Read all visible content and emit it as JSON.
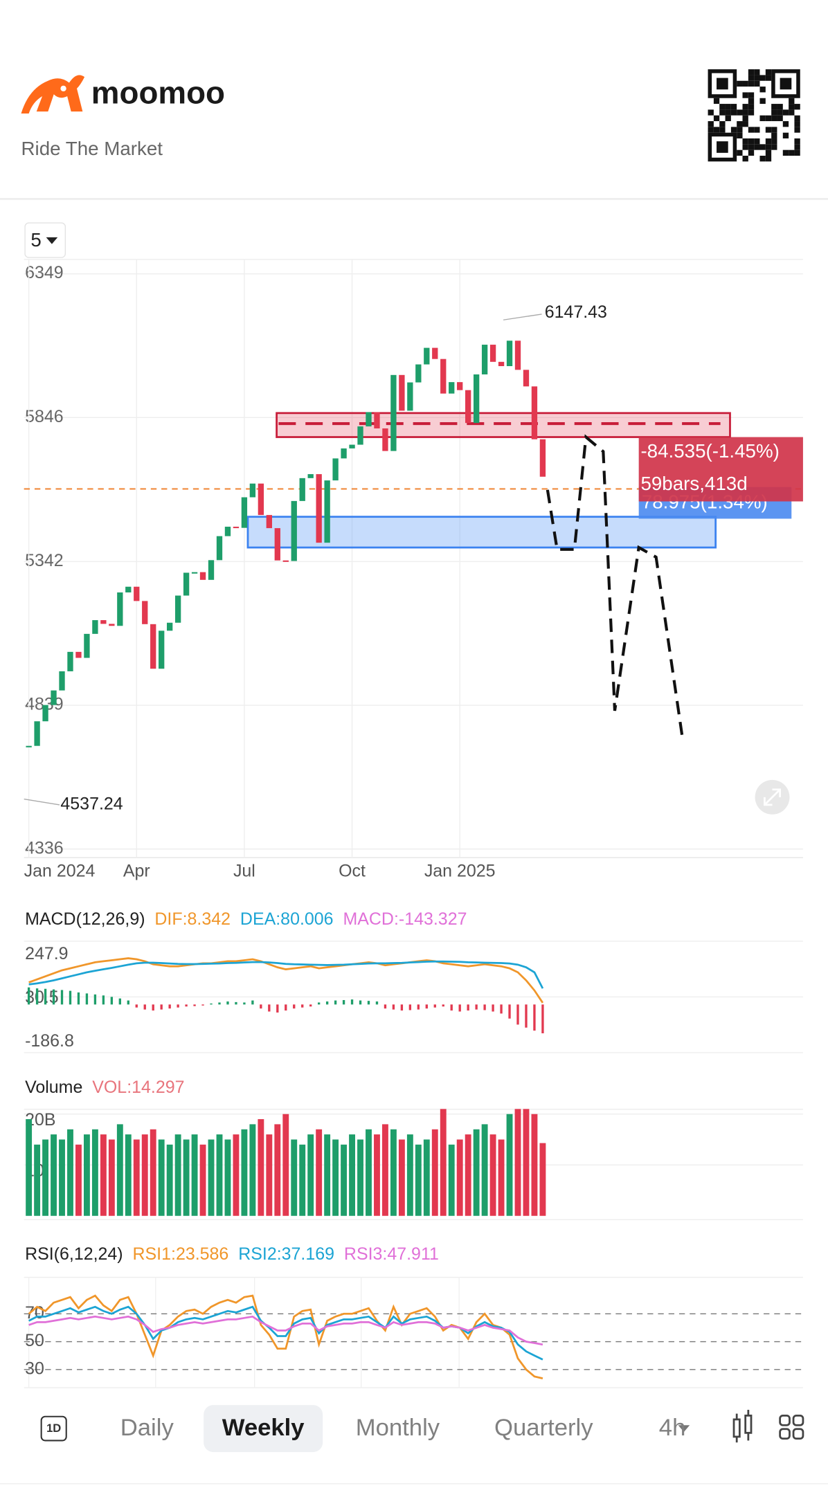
{
  "header": {
    "brand": "moomoo",
    "tagline": "Ride The Market"
  },
  "period_selector": "5",
  "chart_data": [
    {
      "type": "candlestick",
      "up_color": "#1e9e6a",
      "down_color": "#e2384f",
      "xlim": [
        0,
        62
      ],
      "xticks": [
        {
          "value": 0,
          "label": "Jan 2024"
        },
        {
          "value": 13,
          "label": "Apr"
        },
        {
          "value": 26,
          "label": "Jul"
        },
        {
          "value": 39,
          "label": "Oct"
        },
        {
          "value": 52,
          "label": "Jan 2025"
        }
      ],
      "ylim": [
        4336,
        6349
      ],
      "yticks": [
        6349,
        5846,
        5342,
        4839,
        4336
      ],
      "grid": true,
      "values": [
        4697,
        4783,
        4840,
        4891,
        4958,
        5026,
        5005,
        5089,
        5137,
        5124,
        5117,
        5234,
        5254,
        5204,
        5123,
        4967,
        5100,
        5128,
        5223,
        5303,
        5305,
        5278,
        5347,
        5431,
        5464,
        5460,
        5567,
        5615,
        5505,
        5459,
        5346,
        5344,
        5554,
        5634,
        5648,
        5408,
        5626,
        5703,
        5738,
        5751,
        5815,
        5865,
        5808,
        5729,
        5995,
        5870,
        5969,
        6032,
        6090,
        6051,
        5930,
        5970,
        5942,
        5827,
        5997,
        6101,
        6041,
        6026,
        6115,
        6013,
        5955,
        5770,
        5639
      ],
      "high_label": 6147.43,
      "low_label": 4537.24,
      "measure_labels": [
        "-84.535(-1.45%)",
        "59bars,413d",
        "78.975(1.34%)"
      ]
    },
    {
      "type": "bar",
      "title": "MACD(12,26,9)",
      "up_color": "#1e9e6a",
      "down_color": "#e2384f",
      "ylim": [
        -186.8,
        247.9
      ],
      "yticks": [
        247.9,
        30.5,
        -186.8
      ],
      "series": [
        {
          "name": "DIF:8.342",
          "color": "#f0962a",
          "values": [
            110,
            125,
            140,
            155,
            170,
            180,
            190,
            200,
            210,
            215,
            220,
            225,
            230,
            225,
            215,
            200,
            195,
            190,
            190,
            195,
            200,
            205,
            205,
            210,
            215,
            215,
            220,
            225,
            215,
            200,
            185,
            175,
            180,
            185,
            190,
            180,
            185,
            190,
            195,
            200,
            205,
            210,
            205,
            195,
            200,
            205,
            210,
            215,
            220,
            215,
            205,
            200,
            195,
            190,
            195,
            200,
            195,
            190,
            180,
            160,
            120,
            70,
            8.342
          ]
        },
        {
          "name": "DEA:80.006",
          "color": "#1ca4d4",
          "values": [
            100,
            105,
            112,
            120,
            130,
            140,
            150,
            160,
            168,
            175,
            182,
            190,
            198,
            205,
            208,
            208,
            206,
            204,
            202,
            201,
            201,
            202,
            203,
            204,
            206,
            207,
            209,
            211,
            211,
            209,
            206,
            202,
            200,
            199,
            198,
            197,
            196,
            197,
            198,
            200,
            202,
            204,
            205,
            205,
            206,
            207,
            209,
            211,
            213,
            214,
            214,
            213,
            212,
            210,
            209,
            208,
            207,
            206,
            204,
            198,
            185,
            160,
            80.006
          ]
        },
        {
          "name": "MACD:-143.327",
          "color": "#e070d8",
          "values": [
            85,
            80,
            78,
            75,
            72,
            68,
            60,
            55,
            50,
            45,
            38,
            30,
            20,
            -15,
            -25,
            -30,
            -25,
            -20,
            -15,
            -10,
            -8,
            -5,
            5,
            10,
            15,
            12,
            10,
            20,
            -20,
            -35,
            -40,
            -30,
            -20,
            -15,
            -10,
            10,
            15,
            20,
            22,
            25,
            20,
            18,
            15,
            -20,
            -25,
            -30,
            -28,
            -25,
            -20,
            -15,
            -10,
            -30,
            -35,
            -30,
            -25,
            -28,
            -35,
            -45,
            -70,
            -100,
            -115,
            -130,
            -143.327
          ]
        }
      ]
    },
    {
      "type": "bar",
      "title": "Volume",
      "ylim": [
        0,
        20
      ],
      "yticks": [
        {
          "value": 20,
          "label": "20B"
        },
        10
      ],
      "series": [
        {
          "name": "VOL:14.297",
          "color": "#e8747c",
          "values": [
            19,
            14,
            15,
            16,
            15,
            17,
            14,
            16,
            17,
            16,
            15,
            18,
            16,
            15,
            16,
            17,
            15,
            14,
            16,
            15,
            16,
            14,
            15,
            16,
            15,
            16,
            17,
            18,
            19,
            16,
            18,
            20,
            15,
            14,
            16,
            17,
            16,
            15,
            14,
            16,
            15,
            17,
            16,
            18,
            17,
            15,
            16,
            14,
            15,
            17,
            21,
            14,
            15,
            16,
            17,
            18,
            16,
            15,
            20,
            21,
            21,
            20,
            14.297
          ]
        }
      ]
    },
    {
      "type": "line",
      "title": "RSI(6,12,24)",
      "ylim": [
        20,
        100
      ],
      "yticks": [
        70,
        50,
        30
      ],
      "grid": true,
      "series": [
        {
          "name": "RSI1:23.586",
          "color": "#f0962a",
          "values": [
            70,
            75,
            72,
            78,
            80,
            82,
            74,
            80,
            83,
            76,
            72,
            80,
            82,
            70,
            55,
            40,
            58,
            62,
            68,
            72,
            73,
            70,
            75,
            78,
            80,
            78,
            82,
            83,
            62,
            55,
            45,
            45,
            68,
            72,
            73,
            48,
            65,
            68,
            70,
            70,
            72,
            74,
            65,
            58,
            75,
            62,
            70,
            72,
            74,
            68,
            58,
            62,
            60,
            52,
            64,
            70,
            62,
            60,
            55,
            38,
            30,
            25,
            23.586
          ]
        },
        {
          "name": "RSI2:37.169",
          "color": "#1ca4d4",
          "values": [
            65,
            68,
            68,
            70,
            72,
            74,
            71,
            73,
            75,
            72,
            70,
            73,
            75,
            70,
            62,
            52,
            58,
            60,
            64,
            66,
            67,
            66,
            68,
            70,
            72,
            71,
            73,
            75,
            65,
            60,
            54,
            54,
            63,
            66,
            67,
            56,
            62,
            64,
            66,
            66,
            67,
            68,
            64,
            60,
            68,
            63,
            66,
            67,
            68,
            65,
            60,
            61,
            60,
            56,
            61,
            64,
            61,
            60,
            57,
            48,
            43,
            40,
            37.169
          ]
        },
        {
          "name": "RSI3:47.911",
          "color": "#e070d8",
          "values": [
            62,
            64,
            64,
            65,
            66,
            67,
            66,
            67,
            68,
            67,
            66,
            67,
            68,
            66,
            62,
            57,
            59,
            60,
            62,
            63,
            64,
            63,
            64,
            65,
            66,
            66,
            67,
            68,
            64,
            61,
            58,
            58,
            61,
            63,
            63,
            58,
            61,
            62,
            63,
            63,
            64,
            64,
            62,
            60,
            64,
            62,
            63,
            64,
            64,
            63,
            60,
            61,
            60,
            58,
            60,
            62,
            60,
            59,
            58,
            53,
            50,
            49,
            47.911
          ]
        }
      ]
    }
  ],
  "tabs": [
    "1D",
    "Daily",
    "Weekly",
    "Monthly",
    "Quarterly",
    "4h"
  ],
  "selected_tab": 2
}
